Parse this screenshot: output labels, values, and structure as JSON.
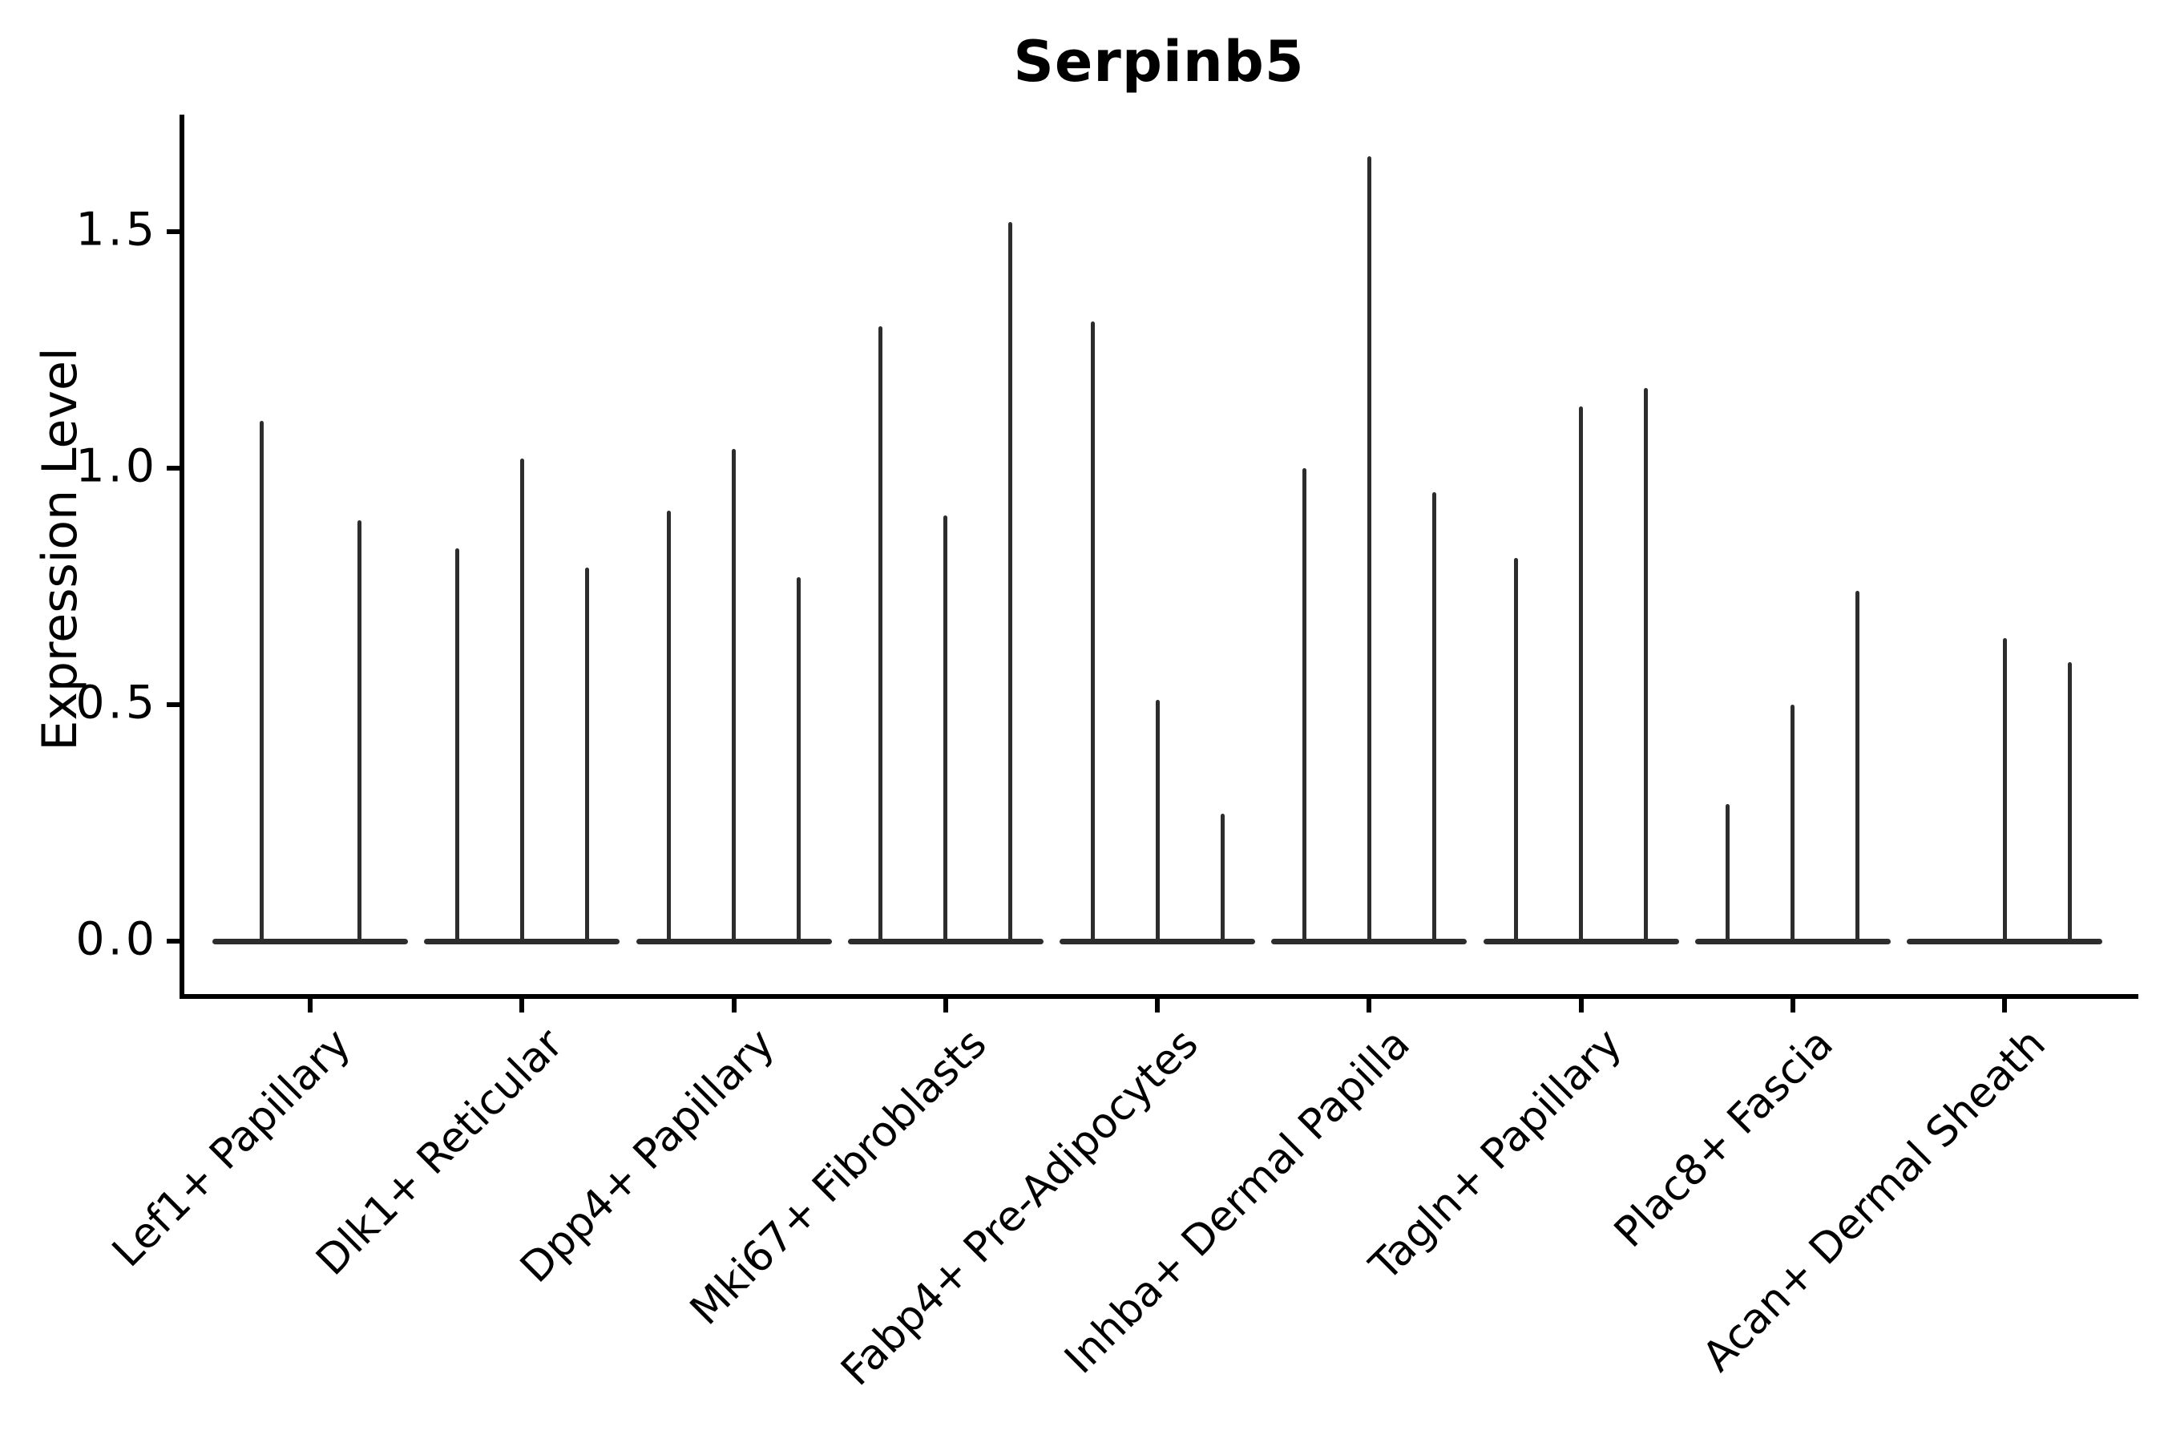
{
  "chart_data": {
    "type": "violin",
    "title": "Serpinb5",
    "ylabel": "Expression Level",
    "xlabel": "",
    "grid": false,
    "legend_position": "none",
    "line_color": "#2d2d2d",
    "ylim": [
      -0.117,
      1.747
    ],
    "ytick_labels": [
      "0.0",
      "0.5",
      "1.0",
      "1.5"
    ],
    "ytick_values": [
      0.0,
      0.5,
      1.0,
      1.5
    ],
    "categories": [
      "Lef1+ Papillary",
      "Dlk1+ Reticular",
      "Dpp4+ Papillary",
      "Mki67+ Fibroblasts",
      "Fabp4+ Pre-Adipocytes",
      "Inhba+ Dermal Papilla",
      "Tagln+ Papillary",
      "Plac8+ Fascia",
      "Acan+ Dermal Sheath"
    ],
    "groups": [
      {
        "category": "Lef1+ Papillary",
        "violins": [
          {
            "offset": -61,
            "max": 1.1
          },
          {
            "offset": 61,
            "max": 0.89
          }
        ]
      },
      {
        "category": "Dlk1+ Reticular",
        "violins": [
          {
            "offset": -81,
            "max": 0.83
          },
          {
            "offset": 0,
            "max": 1.02
          },
          {
            "offset": 81,
            "max": 0.79
          }
        ]
      },
      {
        "category": "Dpp4+ Papillary",
        "violins": [
          {
            "offset": -81,
            "max": 0.91
          },
          {
            "offset": 0,
            "max": 1.04
          },
          {
            "offset": 81,
            "max": 0.77
          }
        ]
      },
      {
        "category": "Mki67+ Fibroblasts",
        "violins": [
          {
            "offset": -81,
            "max": 1.3
          },
          {
            "offset": 0,
            "max": 0.9
          },
          {
            "offset": 81,
            "max": 1.52
          }
        ]
      },
      {
        "category": "Fabp4+ Pre-Adipocytes",
        "violins": [
          {
            "offset": -81,
            "max": 1.31
          },
          {
            "offset": 0,
            "max": 0.51
          },
          {
            "offset": 81,
            "max": 0.27
          }
        ]
      },
      {
        "category": "Inhba+ Dermal Papilla",
        "violins": [
          {
            "offset": -81,
            "max": 1.0
          },
          {
            "offset": 0,
            "max": 1.66
          },
          {
            "offset": 81,
            "max": 0.95
          }
        ]
      },
      {
        "category": "Tagln+ Papillary",
        "violins": [
          {
            "offset": -81,
            "max": 0.81
          },
          {
            "offset": 0,
            "max": 1.13
          },
          {
            "offset": 81,
            "max": 1.17
          }
        ]
      },
      {
        "category": "Plac8+ Fascia",
        "violins": [
          {
            "offset": -81,
            "max": 0.29
          },
          {
            "offset": 0,
            "max": 0.5
          },
          {
            "offset": 81,
            "max": 0.74
          }
        ]
      },
      {
        "category": "Acan+ Dermal Sheath",
        "violins": [
          {
            "offset": 0,
            "max": 0.64
          },
          {
            "offset": 81,
            "max": 0.59
          }
        ]
      }
    ]
  }
}
